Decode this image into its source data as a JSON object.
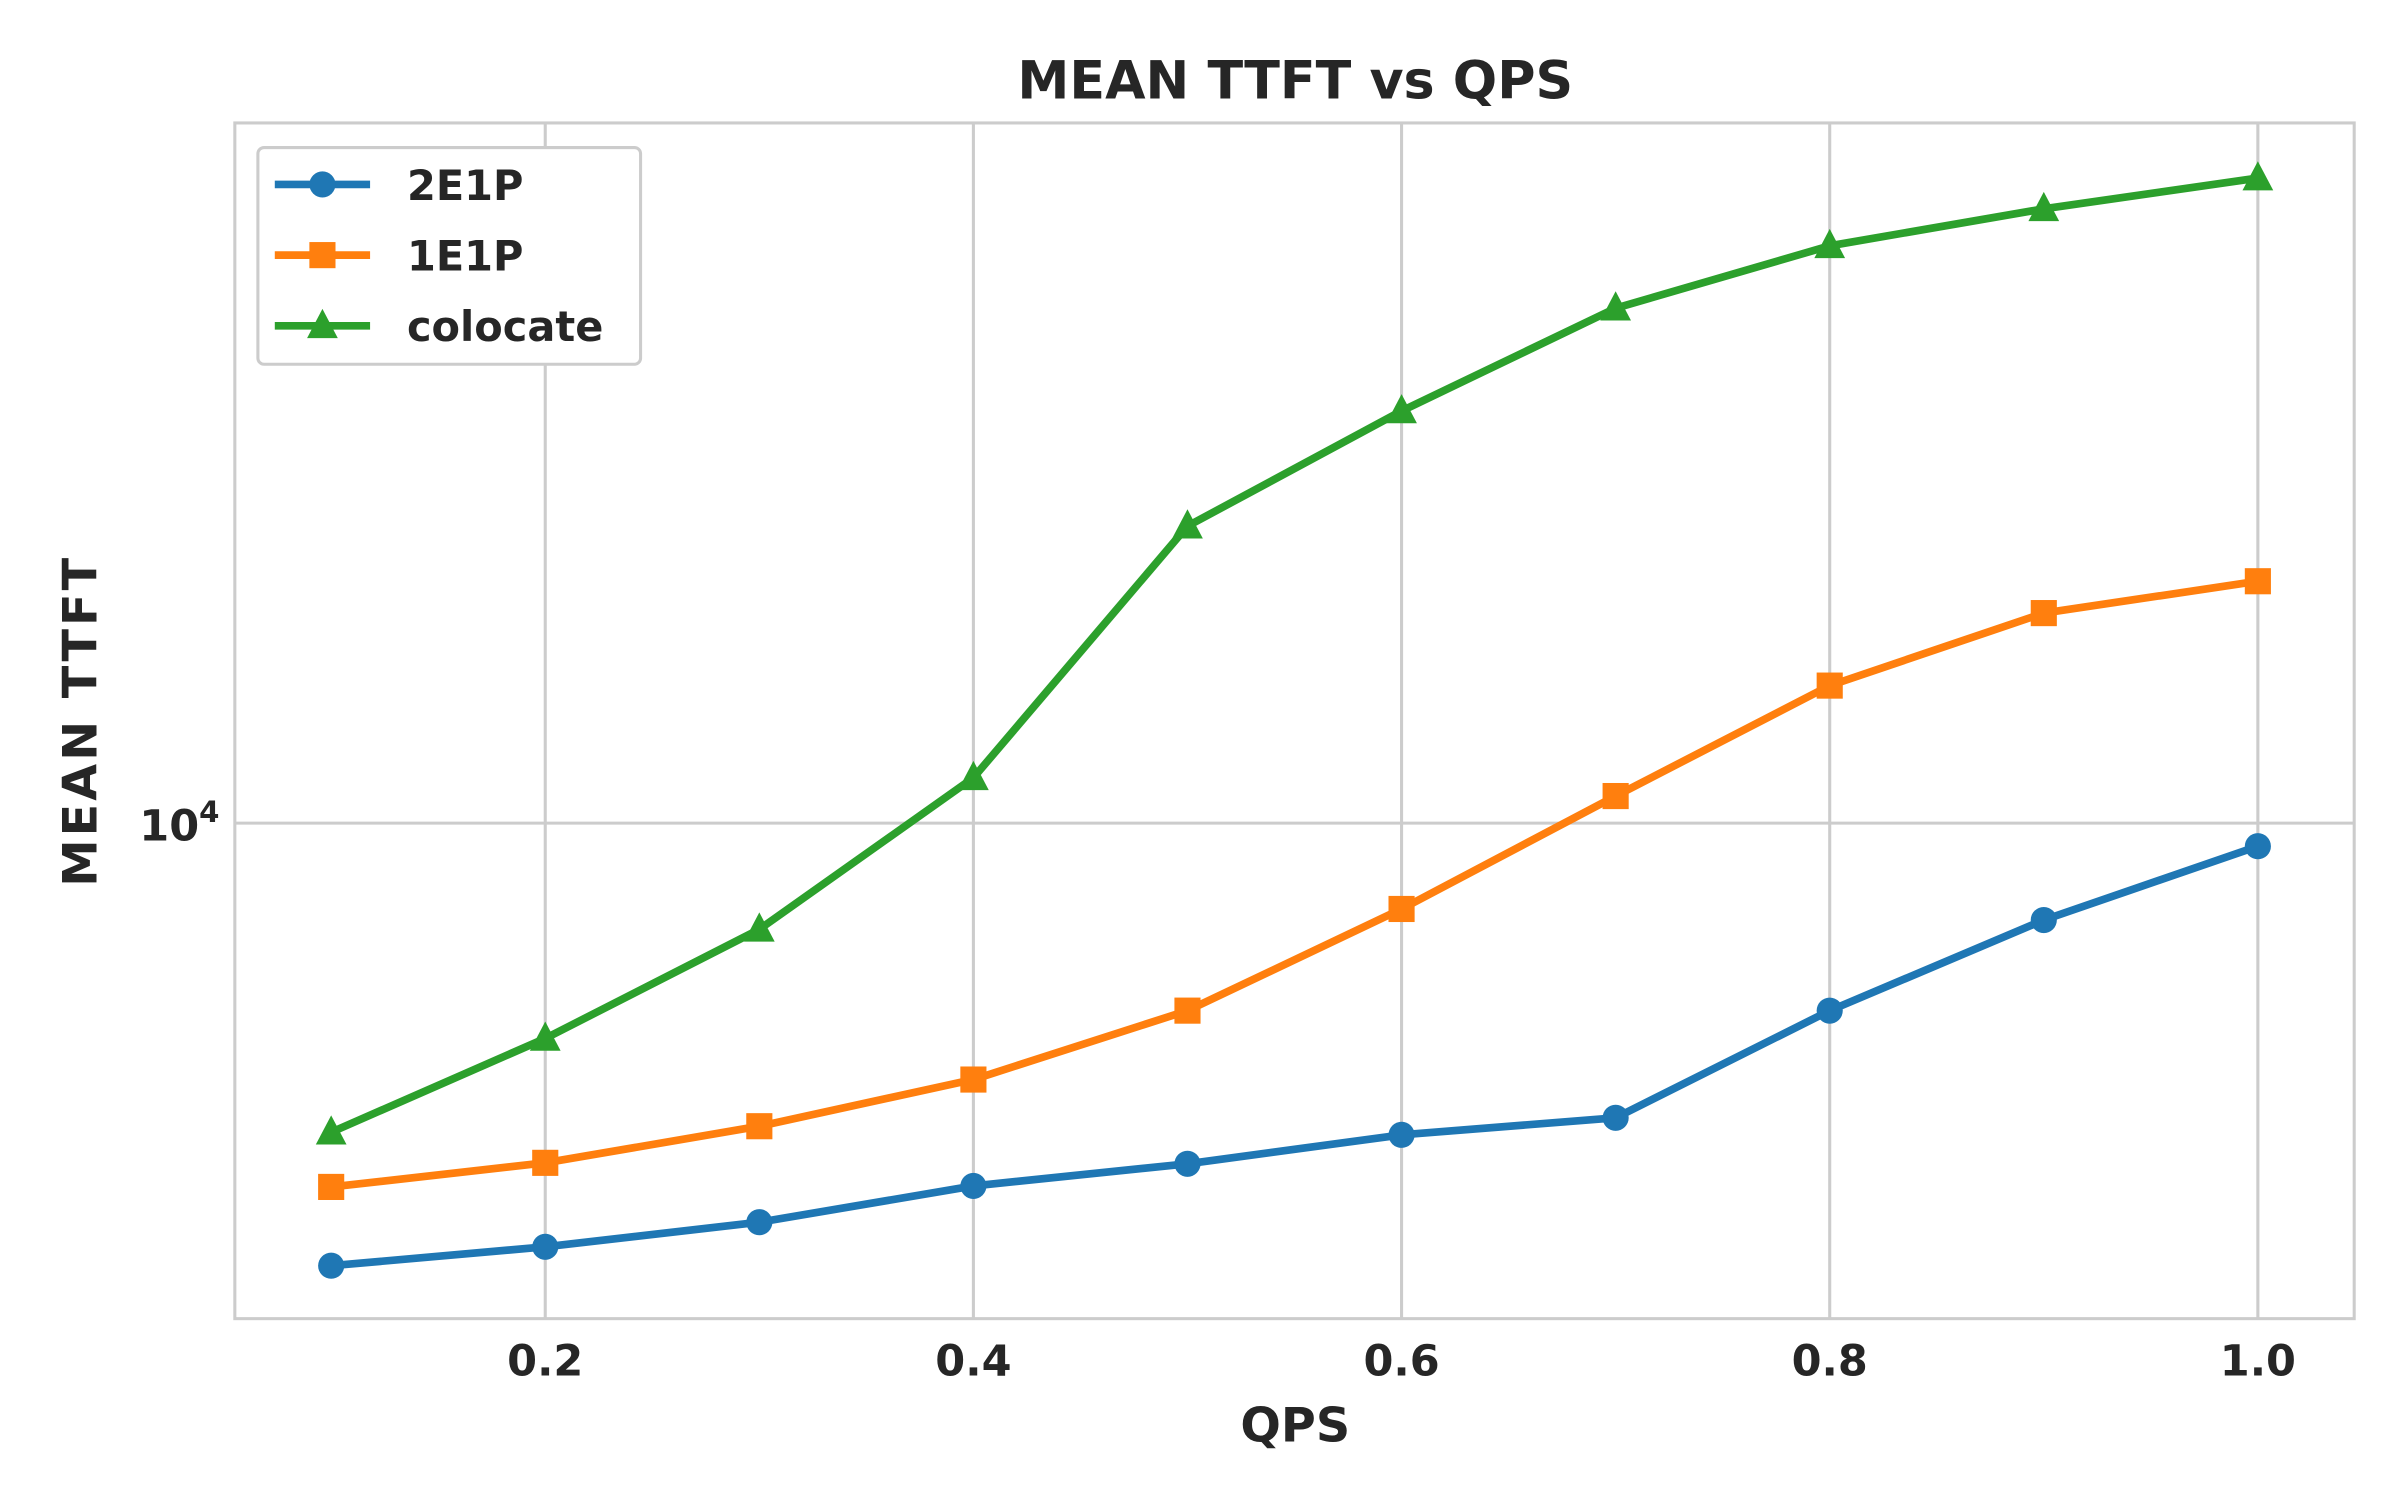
{
  "chart_data": {
    "type": "line",
    "title": "MEAN TTFT vs QPS",
    "xlabel": "QPS",
    "ylabel": "MEAN TTFT",
    "yscale": "log",
    "x": [
      0.1,
      0.2,
      0.3,
      0.4,
      0.5,
      0.6,
      0.7,
      0.8,
      0.9,
      1.0
    ],
    "xlim": [
      0.055,
      1.045
    ],
    "ylim": [
      2900,
      57500
    ],
    "xticks": [
      0.2,
      0.4,
      0.6,
      0.8,
      1.0
    ],
    "xtick_labels": [
      "0.2",
      "0.4",
      "0.6",
      "0.8",
      "1.0"
    ],
    "yticks": [
      10000
    ],
    "ytick_labels": [
      {
        "base": "10",
        "exp": "4"
      }
    ],
    "grid": true,
    "legend_position": "top-left",
    "series": [
      {
        "name": "2E1P",
        "color": "#1f77b4",
        "marker": "circle",
        "values": [
          3310,
          3470,
          3690,
          4040,
          4270,
          4590,
          4790,
          6260,
          7850,
          9440
        ]
      },
      {
        "name": "1E1P",
        "color": "#ff7f0e",
        "marker": "square",
        "values": [
          4030,
          4280,
          4690,
          5270,
          6260,
          8070,
          10700,
          14100,
          16900,
          18300
        ]
      },
      {
        "name": "colocate",
        "color": "#2ca02c",
        "marker": "triangle",
        "values": [
          4620,
          5840,
          7670,
          11200,
          21000,
          28000,
          36200,
          42300,
          46400,
          50100
        ]
      }
    ]
  }
}
